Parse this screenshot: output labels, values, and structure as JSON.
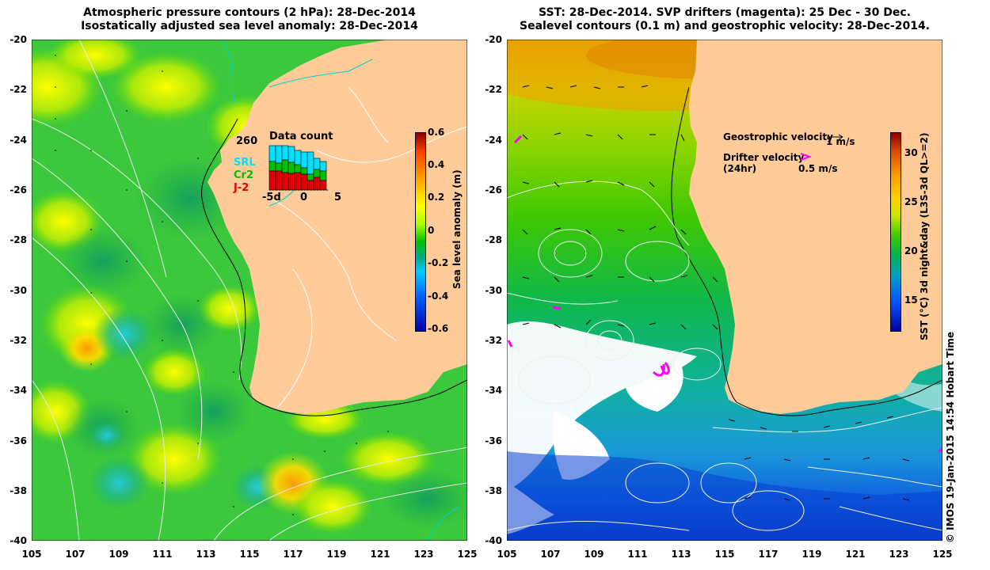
{
  "left_panel": {
    "title_line1": "Atmospheric pressure contours (2 hPa): 28-Dec-2014",
    "title_line2": "Isostatically adjusted sea level anomaly: 28-Dec-2014",
    "colorbar": {
      "label": "Sea level anomaly (m)",
      "ticks": [
        "0.6",
        "0.4",
        "0.2",
        "0",
        "-0.2",
        "-0.4",
        "-0.6"
      ],
      "colors": [
        "#8b0000",
        "#ff5a00",
        "#ffb400",
        "#ffff00",
        "#aaff00",
        "#00c800",
        "#00aa88",
        "#00c8ff",
        "#0064ff",
        "#0000aa"
      ]
    },
    "data_count": {
      "title": "Data count",
      "max_label": "260",
      "x_ticks": [
        "-5d",
        "0",
        "5"
      ],
      "series": [
        {
          "name": "SRL",
          "color": "#00e0ff"
        },
        {
          "name": "Cr2",
          "color": "#00c000"
        },
        {
          "name": "J-2",
          "color": "#e00000"
        }
      ]
    }
  },
  "right_panel": {
    "title_line1": "SST: 28-Dec-2014. SVP drifters (magenta): 25 Dec - 30 Dec.",
    "title_line2": "Sealevel contours (0.1 m) and geostrophic velocity: 28-Dec-2014.",
    "colorbar": {
      "label": "SST (°C) 3d night&day (L3S-3d QL>=2)",
      "ticks": [
        "30",
        "25",
        "20",
        "15"
      ],
      "colors": [
        "#8b0000",
        "#e05000",
        "#ffa000",
        "#ffd000",
        "#c8e600",
        "#40c800",
        "#00b450",
        "#00a0c8",
        "#0050ff",
        "#0000a0"
      ]
    },
    "legend": {
      "geostrophic_label": "Geostrophic velocity",
      "geostrophic_scale": "1 m/s",
      "drifter_label_line1": "Drifter velocity",
      "drifter_label_line2": "(24hr)",
      "drifter_scale": "0.5 m/s"
    }
  },
  "axes": {
    "y_ticks": [
      "-20",
      "-22",
      "-24",
      "-26",
      "-28",
      "-30",
      "-32",
      "-34",
      "-36",
      "-38",
      "-40"
    ],
    "x_ticks": [
      "105",
      "107",
      "109",
      "111",
      "113",
      "115",
      "117",
      "119",
      "121",
      "123",
      "125"
    ]
  },
  "credit": "© IMOS 19-Jan-2015 14:54 Hobart Time"
}
